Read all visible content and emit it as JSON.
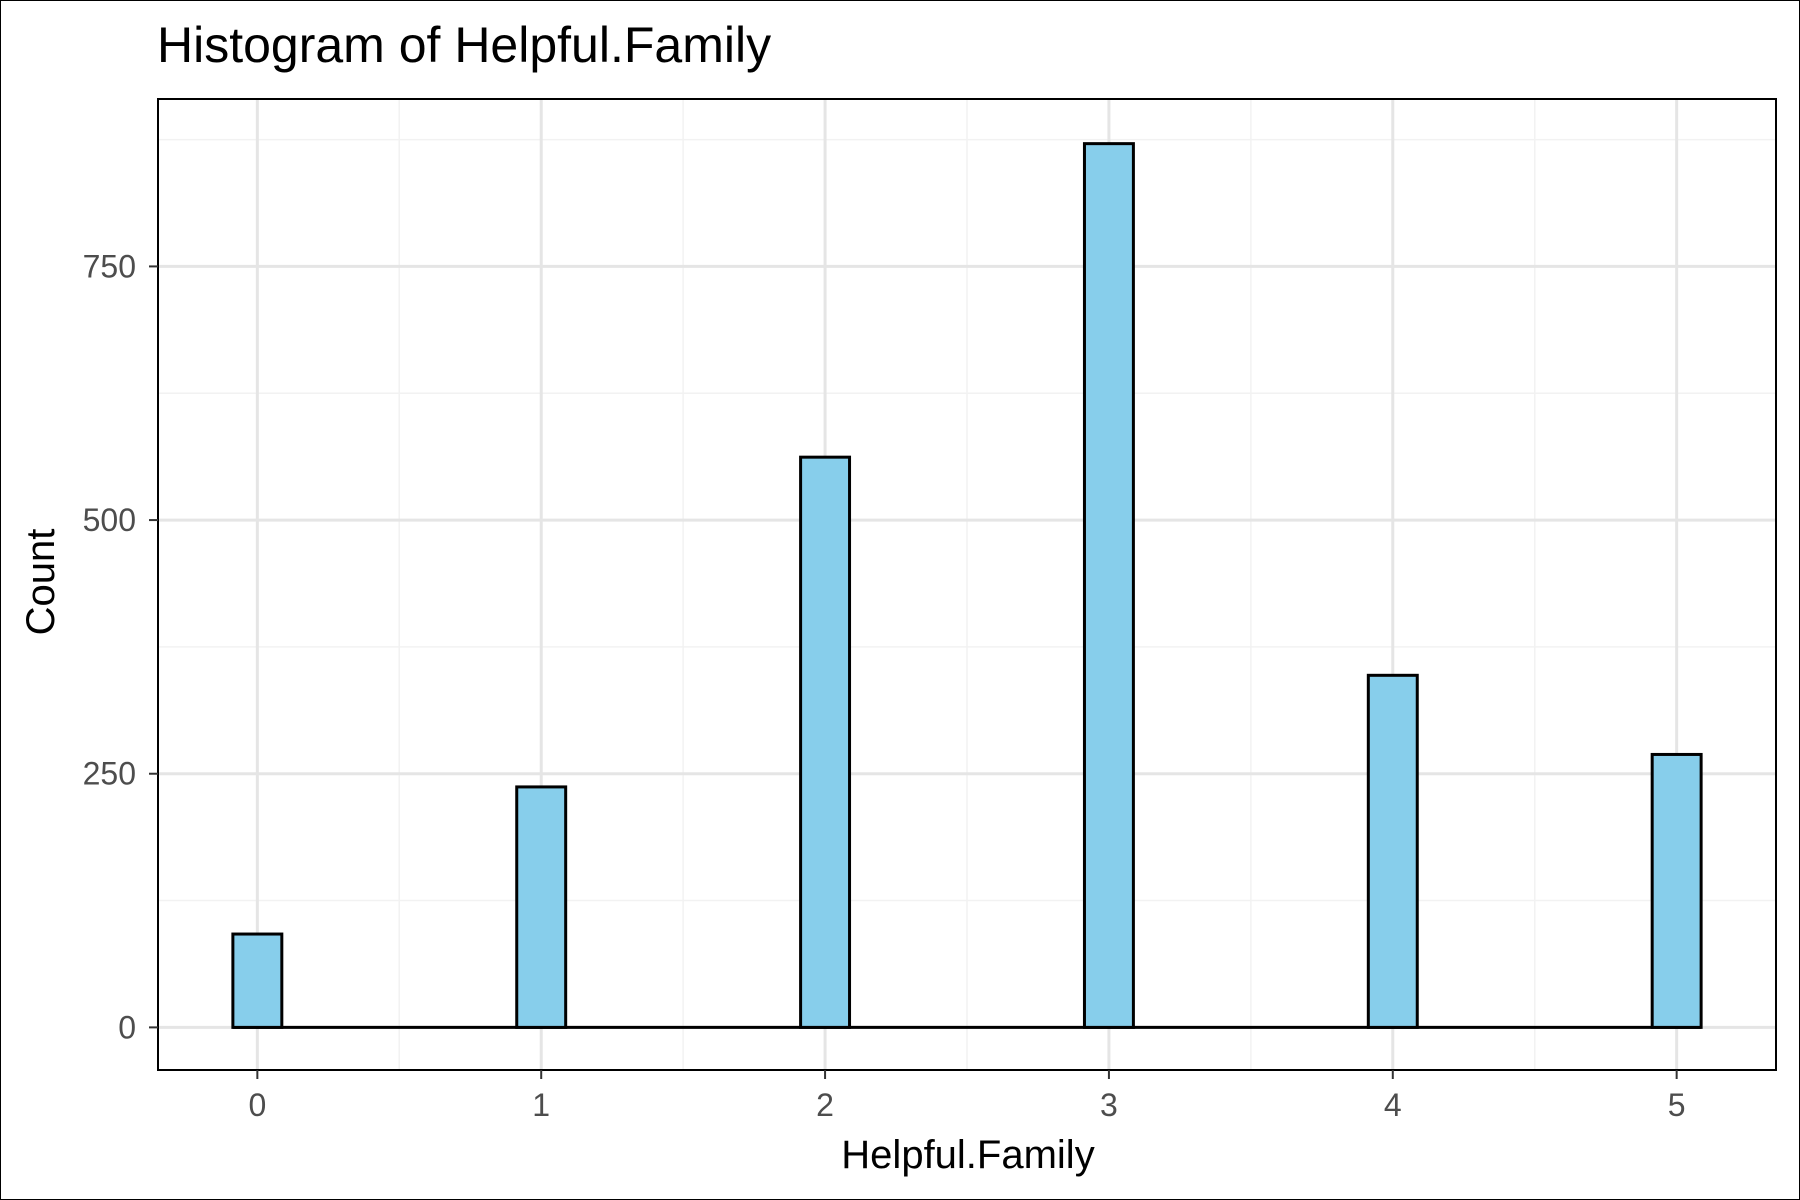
{
  "chart_data": {
    "type": "bar",
    "title": "Histogram of Helpful.Family",
    "xlabel": "Helpful.Family",
    "ylabel": "Count",
    "x": [
      0,
      1,
      2,
      3,
      4,
      5
    ],
    "values": [
      92,
      237,
      562,
      871,
      347,
      269
    ],
    "x_ticks": [
      "0",
      "1",
      "2",
      "3",
      "4",
      "5"
    ],
    "y_ticks": [
      "0",
      "250",
      "500",
      "750"
    ],
    "xlim": [
      -0.35,
      5.35
    ],
    "ylim": [
      -42,
      915
    ],
    "grid": true,
    "colors": {
      "bar_fill": "#87CEEB",
      "bar_stroke": "#000000",
      "grid_major": "#e5e5e5",
      "grid_minor": "#f2f2f2",
      "panel_border": "#000000"
    }
  }
}
